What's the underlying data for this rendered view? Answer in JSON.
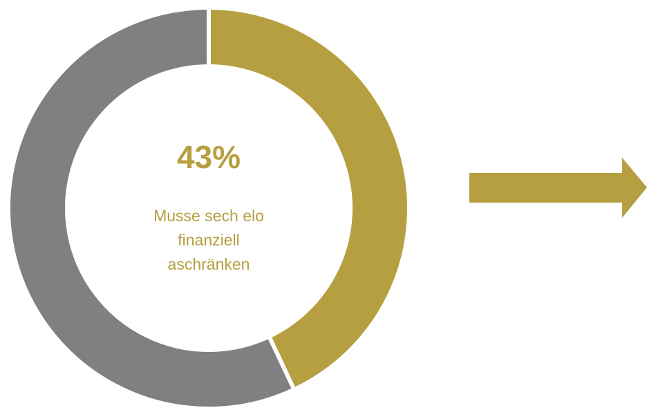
{
  "chart_data": {
    "type": "donut",
    "categories": [
      "Musse sech elo finanziell aschränken",
      null
    ],
    "values": [
      43,
      57
    ],
    "value_labels": [
      "43%",
      null
    ],
    "colors": [
      "#b59f40",
      "#808080"
    ]
  }
}
